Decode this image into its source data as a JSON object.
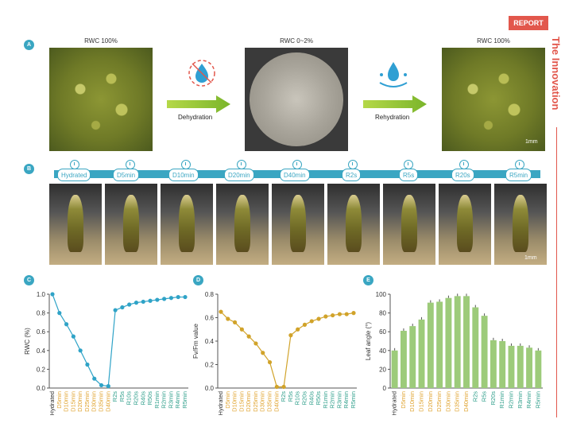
{
  "header": {
    "report": "REPORT",
    "journal": "The Innovation"
  },
  "panel_a": {
    "label": "A",
    "caption_left": "RWC 100%",
    "caption_mid": "RWC 0~2%",
    "caption_right": "RWC 100%",
    "arrow1": "Dehydration",
    "arrow2": "Rehydration",
    "scale": "1mm",
    "colors": {
      "arrow_start": "#a6d24a",
      "arrow_end": "#7ab52b",
      "icon": "#2f9fd3"
    },
    "icons": [
      "dehydration-icon",
      "rehydration-icon"
    ]
  },
  "panel_b": {
    "label": "B",
    "timeline": [
      "Hydrated",
      "D5min",
      "D10min",
      "D20min",
      "D40min",
      "R2s",
      "R5s",
      "R20s",
      "R5min"
    ],
    "scale": "1mm",
    "colors": {
      "timeline": "#3aa6c2"
    }
  },
  "chart_data": [
    {
      "panel": "C",
      "type": "line",
      "ylabel": "RWC (%)",
      "ylim": [
        0,
        1.0
      ],
      "yticks": [
        "0.0",
        "0.2",
        "0.4",
        "0.6",
        "0.8",
        "1.0"
      ],
      "categories": [
        "Hydrated",
        "D5min",
        "D10min",
        "D15min",
        "D20min",
        "D25min",
        "D30min",
        "D35min",
        "D40min",
        "R2s",
        "R5s",
        "R10s",
        "R20s",
        "R40s",
        "R50s",
        "R1min",
        "R2min",
        "R3min",
        "R4min",
        "R5min"
      ],
      "values": [
        1.0,
        0.8,
        0.68,
        0.55,
        0.4,
        0.25,
        0.1,
        0.03,
        0.02,
        0.83,
        0.86,
        0.89,
        0.91,
        0.92,
        0.93,
        0.94,
        0.95,
        0.96,
        0.97,
        0.97
      ],
      "color": "#2fa3c7"
    },
    {
      "panel": "D",
      "type": "line",
      "ylabel": "Fv/Fm value",
      "ylim": [
        0,
        0.8
      ],
      "yticks": [
        "0.0",
        "0.2",
        "0.4",
        "0.6",
        "0.8"
      ],
      "categories": [
        "Hydrated",
        "D5min",
        "D10min",
        "D15min",
        "D20min",
        "D25min",
        "D30min",
        "D35min",
        "D40min",
        "R2s",
        "R5s",
        "R10s",
        "R20s",
        "R40s",
        "R50s",
        "R1min",
        "R2min",
        "R3min",
        "R4min",
        "R5min"
      ],
      "values": [
        0.65,
        0.59,
        0.56,
        0.5,
        0.44,
        0.38,
        0.3,
        0.22,
        0.01,
        0.01,
        0.45,
        0.5,
        0.54,
        0.57,
        0.59,
        0.61,
        0.62,
        0.63,
        0.63,
        0.64
      ],
      "color": "#d1a32a"
    },
    {
      "panel": "E",
      "type": "bar",
      "ylabel": "Leaf angle (°)",
      "ylim": [
        0,
        100
      ],
      "yticks": [
        "0",
        "20",
        "40",
        "60",
        "80",
        "100"
      ],
      "categories": [
        "Hydrated",
        "D5min",
        "D10min",
        "D15min",
        "D20min",
        "D25min",
        "D30min",
        "D35min",
        "D40min",
        "R2s",
        "R5s",
        "R20s",
        "R1min",
        "R2min",
        "R3min",
        "R4min",
        "R5min"
      ],
      "values": [
        40,
        61,
        66,
        73,
        91,
        92,
        96,
        98,
        98,
        86,
        77,
        51,
        50,
        45,
        45,
        43,
        40
      ],
      "color": "#9dcb7a"
    }
  ],
  "x_colors": {
    "hydrated": "#333333",
    "dehydration": "#e0a32e",
    "rehydration": "#2e9e8a"
  }
}
